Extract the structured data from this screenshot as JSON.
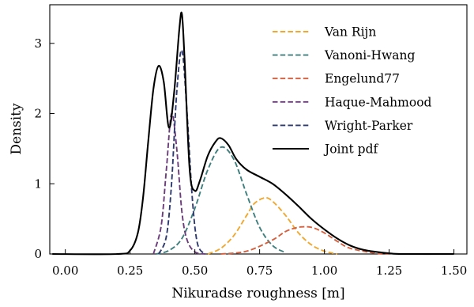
{
  "chart_data": {
    "type": "line",
    "title": "",
    "xlabel": "Nikuradse roughness [m]",
    "ylabel": "Density",
    "xlim": [
      -0.06,
      1.55
    ],
    "ylim": [
      0,
      3.55
    ],
    "xticks": [
      0.0,
      0.25,
      0.5,
      0.75,
      1.0,
      1.25,
      1.5
    ],
    "xtick_labels": [
      "0.00",
      "0.25",
      "0.50",
      "0.75",
      "1.00",
      "1.25",
      "1.50"
    ],
    "yticks": [
      0,
      1,
      2,
      3
    ],
    "ytick_labels": [
      "0",
      "1",
      "2",
      "3"
    ],
    "grid": false,
    "legend_position": "top-right",
    "series": [
      {
        "name": "Van Rijn",
        "color": "#f0a830",
        "style": "dashed",
        "x": [
          0.55,
          0.6,
          0.65,
          0.7,
          0.73,
          0.77,
          0.8,
          0.85,
          0.9,
          0.95,
          1.0,
          1.05
        ],
        "y": [
          0.0,
          0.08,
          0.26,
          0.55,
          0.72,
          0.8,
          0.75,
          0.55,
          0.3,
          0.13,
          0.04,
          0.0
        ]
      },
      {
        "name": "Vanoni-Hwang",
        "color": "#3e7f7e",
        "style": "dashed",
        "x": [
          0.35,
          0.4,
          0.45,
          0.5,
          0.55,
          0.6,
          0.65,
          0.7,
          0.75,
          0.8,
          0.85
        ],
        "y": [
          0.0,
          0.05,
          0.22,
          0.65,
          1.2,
          1.52,
          1.35,
          0.85,
          0.38,
          0.12,
          0.02
        ]
      },
      {
        "name": "Engelund77",
        "color": "#d65f3e",
        "style": "dashed",
        "x": [
          0.6,
          0.7,
          0.8,
          0.85,
          0.9,
          0.95,
          1.0,
          1.05,
          1.1,
          1.2,
          1.25
        ],
        "y": [
          0.0,
          0.04,
          0.2,
          0.32,
          0.38,
          0.38,
          0.3,
          0.18,
          0.08,
          0.01,
          0.0
        ]
      },
      {
        "name": "Haque-Mahmood",
        "color": "#6a3d7a",
        "style": "dashed",
        "x": [
          0.34,
          0.37,
          0.39,
          0.41,
          0.43,
          0.45,
          0.47,
          0.5,
          0.54
        ],
        "y": [
          0.0,
          0.4,
          1.2,
          2.0,
          1.5,
          0.6,
          0.2,
          0.03,
          0.0
        ]
      },
      {
        "name": "Wright-Parker",
        "color": "#2e3a6e",
        "style": "dashed",
        "x": [
          0.36,
          0.39,
          0.41,
          0.43,
          0.45,
          0.47,
          0.49,
          0.51,
          0.54
        ],
        "y": [
          0.0,
          0.25,
          1.0,
          2.3,
          2.9,
          2.0,
          0.8,
          0.15,
          0.0
        ]
      },
      {
        "name": "Joint pdf",
        "color": "#000000",
        "style": "solid",
        "x": [
          -0.05,
          0.2,
          0.25,
          0.28,
          0.3,
          0.32,
          0.34,
          0.36,
          0.38,
          0.4,
          0.42,
          0.44,
          0.45,
          0.46,
          0.48,
          0.5,
          0.52,
          0.55,
          0.58,
          0.6,
          0.63,
          0.66,
          0.7,
          0.75,
          0.8,
          0.85,
          0.9,
          0.95,
          1.0,
          1.05,
          1.1,
          1.15,
          1.2,
          1.25,
          1.3,
          1.5
        ],
        "y": [
          0.0,
          0.0,
          0.05,
          0.3,
          0.8,
          1.6,
          2.35,
          2.68,
          2.45,
          1.8,
          2.3,
          3.2,
          3.42,
          2.8,
          1.2,
          0.9,
          1.05,
          1.4,
          1.6,
          1.65,
          1.55,
          1.35,
          1.2,
          1.1,
          1.0,
          0.85,
          0.68,
          0.5,
          0.35,
          0.22,
          0.12,
          0.06,
          0.03,
          0.01,
          0.0,
          0.0
        ]
      }
    ]
  }
}
